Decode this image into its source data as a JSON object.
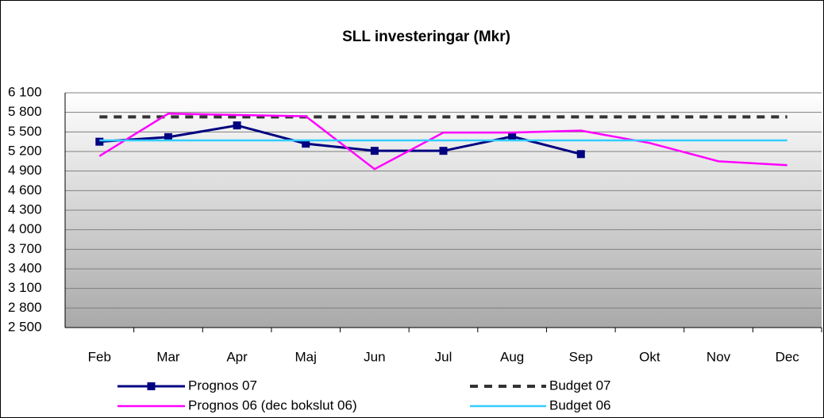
{
  "chart_data": {
    "type": "line",
    "title": "SLL investeringar (Mkr)",
    "categories": [
      "Feb",
      "Mar",
      "Apr",
      "Maj",
      "Jun",
      "Jul",
      "Aug",
      "Sep",
      "Okt",
      "Nov",
      "Dec"
    ],
    "series": [
      {
        "name": "Prognos 07",
        "color": "#000080",
        "marker": "square",
        "dash": false,
        "values": [
          5350,
          5420,
          5600,
          5320,
          5210,
          5210,
          5430,
          5160,
          null,
          null,
          null
        ]
      },
      {
        "name": "Budget 07",
        "color": "#333333",
        "marker": "none",
        "dash": true,
        "values": [
          5730,
          5730,
          5730,
          5730,
          5730,
          5730,
          5730,
          5730,
          5730,
          5730,
          5730
        ]
      },
      {
        "name": "Prognos 06 (dec bokslut 06)",
        "color": "#ff00ff",
        "marker": "none",
        "dash": false,
        "values": [
          5130,
          5780,
          5760,
          5740,
          4930,
          5490,
          5490,
          5520,
          5330,
          5050,
          4990
        ]
      },
      {
        "name": "Budget 06",
        "color": "#33ccff",
        "marker": "none",
        "dash": false,
        "values": [
          5370,
          5370,
          5370,
          5370,
          5370,
          5370,
          5370,
          5370,
          5370,
          5370,
          5370
        ]
      }
    ],
    "ylim": [
      2500,
      6100
    ],
    "yticks": [
      {
        "value": 2500,
        "label": "2 500"
      },
      {
        "value": 2800,
        "label": "2 800"
      },
      {
        "value": 3100,
        "label": "3 100"
      },
      {
        "value": 3400,
        "label": "3 400"
      },
      {
        "value": 3700,
        "label": "3 700"
      },
      {
        "value": 4000,
        "label": "4 000"
      },
      {
        "value": 4300,
        "label": "4 300"
      },
      {
        "value": 4600,
        "label": "4 600"
      },
      {
        "value": 4900,
        "label": "4 900"
      },
      {
        "value": 5200,
        "label": "5 200"
      },
      {
        "value": 5500,
        "label": "5 500"
      },
      {
        "value": 5800,
        "label": "5 800"
      },
      {
        "value": 6100,
        "label": "6 100"
      }
    ],
    "grid": true
  }
}
